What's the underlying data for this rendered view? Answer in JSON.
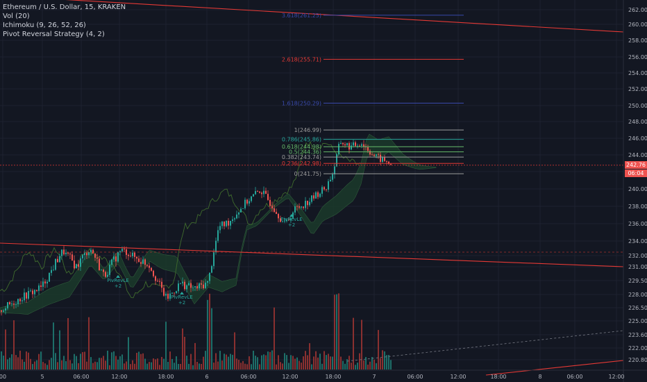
{
  "legend": {
    "symbol": "Ethereum / U.S. Dollar, 15, KRAKEN",
    "indicators": [
      "Vol (20)",
      "Ichimoku (9, 26, 52, 26)",
      "Pivot Reversal Strategy (4, 2)"
    ]
  },
  "colors": {
    "background": "#131722",
    "grid": "#1e2230",
    "up": "#26a69a",
    "down": "#ef5350",
    "vol_up": "#1d6f69",
    "vol_down": "#8a3030",
    "trendline": "#e53935",
    "fib_red": "#e53935",
    "fib_blue": "#3949ab",
    "fib_gray": "#9e9e9e",
    "cloud_green": "#1b3a2a",
    "cloud_red": "#3b2024",
    "lagging": "#3f6b2d",
    "tag_red": "#ef5350",
    "axis_text": "#b2b5be"
  },
  "price_tags": {
    "last_price": "242.76",
    "countdown": "06:04"
  },
  "chart_data": {
    "type": "candlestick",
    "y_axis_ticks": [
      "262.00",
      "260.00",
      "258.00",
      "256.00",
      "254.00",
      "252.00",
      "250.00",
      "248.00",
      "246.00",
      "244.00",
      "242.00",
      "240.00",
      "238.00",
      "236.00",
      "234.00",
      "232.00",
      "231.00",
      "229.50",
      "228.00",
      "226.50",
      "225.00",
      "223.60",
      "222.00",
      "220.80"
    ],
    "x_axis_ticks": [
      "00",
      "5",
      "06:00",
      "12:00",
      "18:00",
      "6",
      "06:00",
      "12:00",
      "18:00",
      "7",
      "06:00",
      "12:00",
      "18:00",
      "8",
      "06:00",
      "12:00"
    ],
    "fib_levels": [
      {
        "label": "3.618(261.25)",
        "value": 261.25,
        "color": "blue"
      },
      {
        "label": "2.618(255.71)",
        "value": 255.71,
        "color": "red"
      },
      {
        "label": "1.618(250.29)",
        "value": 250.29,
        "color": "blue"
      },
      {
        "label": "1(246.99)",
        "value": 246.99,
        "color": "gray"
      },
      {
        "label": "0.786(245.86)",
        "value": 245.86,
        "color": "teal"
      },
      {
        "label": "0.618(244.98)",
        "value": 244.98,
        "color": "green"
      },
      {
        "label": "0.5(244.36)",
        "value": 244.36,
        "color": "green"
      },
      {
        "label": "0.382(243.74)",
        "value": 243.74,
        "color": "gray"
      },
      {
        "label": "0.236(242.98)",
        "value": 242.98,
        "color": "red"
      },
      {
        "label": "0(241.75)",
        "value": 241.75,
        "color": "gray"
      }
    ],
    "strategy_labels": [
      {
        "text": "PivRevLE",
        "sub": "+2",
        "time_index": 28
      },
      {
        "text": "PivRevLE",
        "sub": "+2",
        "time_index": 44
      },
      {
        "text": "PivRevLE",
        "sub": "+2",
        "time_index": 72
      }
    ],
    "last_price": 242.76
  }
}
